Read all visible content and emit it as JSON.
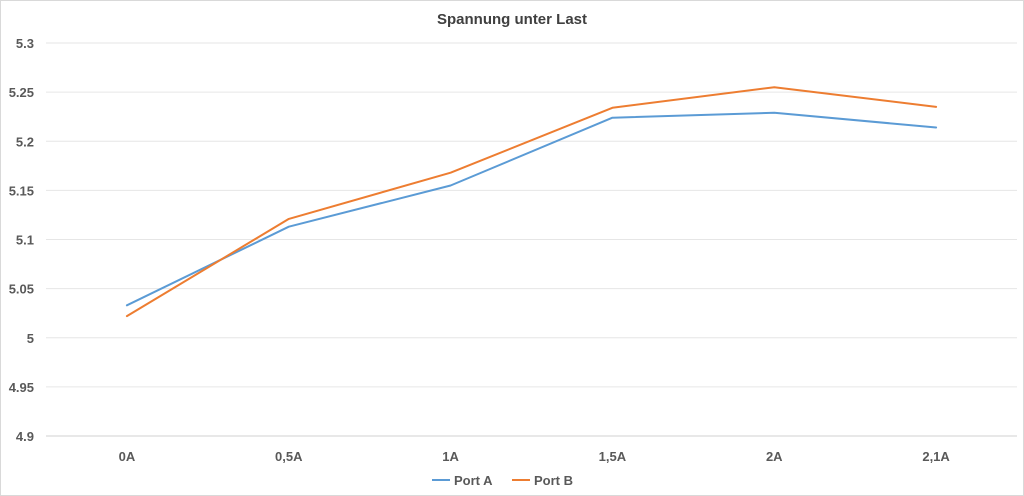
{
  "chart_data": {
    "type": "line",
    "title": "Spannung unter Last",
    "xlabel": "",
    "ylabel": "",
    "categories": [
      "0A",
      "0,5A",
      "1A",
      "1,5A",
      "2A",
      "2,1A"
    ],
    "ylim": [
      4.9,
      5.3
    ],
    "yticks": [
      4.9,
      4.95,
      5,
      5.05,
      5.1,
      5.15,
      5.2,
      5.25,
      5.3
    ],
    "ytick_labels": [
      "4.9",
      "4.95",
      "5",
      "5.05",
      "5.1",
      "5.15",
      "5.2",
      "5.25",
      "5.3"
    ],
    "grid": true,
    "legend_position": "bottom",
    "series": [
      {
        "name": "Port A",
        "color": "#5b9bd5",
        "values": [
          5.033,
          5.113,
          5.155,
          5.224,
          5.229,
          5.214
        ]
      },
      {
        "name": "Port B",
        "color": "#ed7d31",
        "values": [
          5.022,
          5.121,
          5.168,
          5.234,
          5.255,
          5.235
        ]
      }
    ]
  }
}
